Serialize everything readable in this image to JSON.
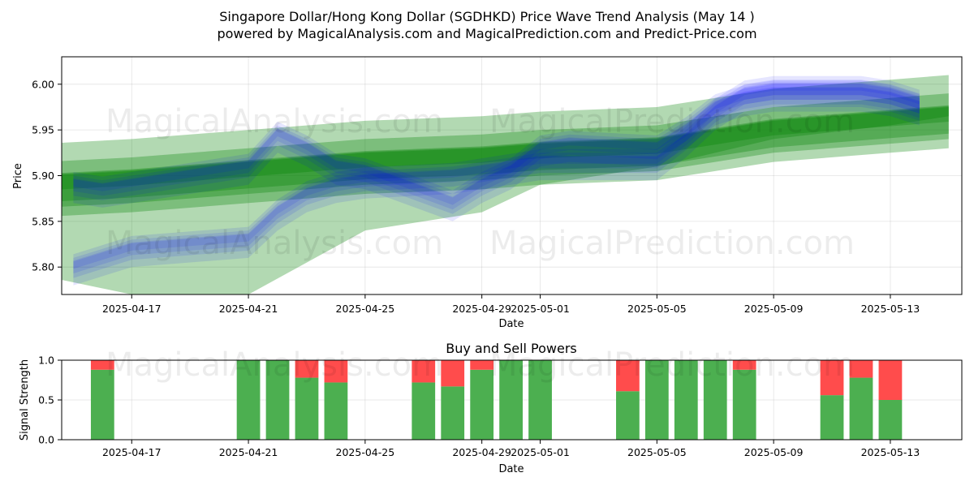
{
  "title_line1": "Singapore Dollar/Hong Kong Dollar (SGDHKD) Price Wave Trend Analysis (May 14 )",
  "title_line2": "powered by MagicalAnalysis.com and MagicalPrediction.com and Predict-Price.com",
  "watermarks": [
    "MagicalAnalysis.com",
    "MagicalPrediction.com"
  ],
  "colors": {
    "blue_wave": "#0000ff",
    "green_wave": "#008000",
    "buy": "#4caf50",
    "sell": "#ff4c4c",
    "grid": "#b0b0b0"
  },
  "chart_data": [
    {
      "type": "area",
      "title": "",
      "xlabel": "Date",
      "ylabel": "Price",
      "x_start": "2025-04-15",
      "x_end": "2025-05-15",
      "xlim": [
        "2025-04-14",
        "2025-05-15"
      ],
      "ylim": [
        5.77,
        6.03
      ],
      "x_ticks": [
        "2025-04-17",
        "2025-04-21",
        "2025-04-25",
        "2025-04-29",
        "2025-05-01",
        "2025-05-05",
        "2025-05-09",
        "2025-05-13"
      ],
      "y_ticks": [
        "5.80",
        "5.85",
        "5.90",
        "5.95",
        "6.00"
      ],
      "grid": true,
      "series": [
        {
          "color": "blue",
          "x": [
            "2025-04-15",
            "2025-04-16",
            "2025-04-17",
            "2025-04-21",
            "2025-04-22",
            "2025-04-23",
            "2025-04-24",
            "2025-04-25",
            "2025-04-28",
            "2025-04-29",
            "2025-04-30",
            "2025-05-01",
            "2025-05-02",
            "2025-05-05",
            "2025-05-06",
            "2025-05-07",
            "2025-05-08",
            "2025-05-09",
            "2025-05-12",
            "2025-05-13",
            "2025-05-14"
          ],
          "values": [
            5.8,
            5.81,
            5.82,
            5.83,
            5.86,
            5.88,
            5.89,
            5.895,
            5.9,
            5.905,
            5.91,
            5.915,
            5.915,
            5.915,
            5.94,
            5.97,
            5.99,
            5.995,
            5.995,
            5.99,
            5.98
          ]
        },
        {
          "color": "blue",
          "x": [
            "2025-04-15",
            "2025-04-16",
            "2025-04-17",
            "2025-04-21",
            "2025-04-22",
            "2025-04-23",
            "2025-04-24",
            "2025-04-25",
            "2025-04-28",
            "2025-04-29",
            "2025-04-30",
            "2025-05-01",
            "2025-05-02",
            "2025-05-05",
            "2025-05-06",
            "2025-05-07",
            "2025-05-08",
            "2025-05-09",
            "2025-05-12",
            "2025-05-13",
            "2025-05-14"
          ],
          "values": [
            5.89,
            5.885,
            5.89,
            5.91,
            5.945,
            5.93,
            5.91,
            5.905,
            5.87,
            5.89,
            5.905,
            5.93,
            5.935,
            5.93,
            5.95,
            5.975,
            5.985,
            5.99,
            5.99,
            5.985,
            5.975
          ]
        },
        {
          "color": "green",
          "x": [
            "2025-04-14",
            "2025-04-17",
            "2025-04-21",
            "2025-04-25",
            "2025-04-29",
            "2025-05-01",
            "2025-05-05",
            "2025-05-09",
            "2025-05-13",
            "2025-05-15"
          ],
          "values": [
            5.89,
            5.895,
            5.905,
            5.915,
            5.92,
            5.925,
            5.93,
            5.95,
            5.96,
            5.965
          ]
        },
        {
          "color": "green",
          "x": [
            "2025-04-14",
            "2025-04-17",
            "2025-04-21",
            "2025-04-25",
            "2025-04-29",
            "2025-05-01",
            "2025-05-05",
            "2025-05-09",
            "2025-05-13",
            "2025-05-15"
          ],
          "values": [
            5.79,
            5.77,
            5.77,
            5.84,
            5.86,
            5.89,
            5.91,
            5.94,
            5.955,
            5.965
          ]
        }
      ]
    },
    {
      "type": "bar",
      "title": "Buy and Sell Powers",
      "xlabel": "Date",
      "ylabel": "Signal Strength",
      "xlim": [
        "2025-04-14",
        "2025-05-15"
      ],
      "ylim": [
        0,
        1.0
      ],
      "x_ticks": [
        "2025-04-17",
        "2025-04-21",
        "2025-04-25",
        "2025-04-29",
        "2025-05-01",
        "2025-05-05",
        "2025-05-09",
        "2025-05-13"
      ],
      "y_ticks": [
        "0.0",
        "0.5",
        "1.0"
      ],
      "categories": [
        "2025-04-16",
        "2025-04-21",
        "2025-04-22",
        "2025-04-23",
        "2025-04-24",
        "2025-04-27",
        "2025-04-28",
        "2025-04-29",
        "2025-04-30",
        "2025-05-01",
        "2025-05-04",
        "2025-05-05",
        "2025-05-06",
        "2025-05-07",
        "2025-05-08",
        "2025-05-11",
        "2025-05-12",
        "2025-05-13"
      ],
      "series": [
        {
          "values": [
            0.88,
            1.0,
            1.0,
            0.78,
            0.72,
            0.72,
            0.67,
            0.88,
            1.0,
            1.0,
            0.61,
            1.0,
            1.0,
            1.0,
            0.88,
            0.56,
            0.78,
            0.5
          ]
        },
        {
          "values": [
            0.12,
            0.0,
            0.0,
            0.22,
            0.28,
            0.28,
            0.33,
            0.12,
            0.0,
            0.0,
            0.39,
            0.0,
            0.0,
            0.0,
            0.12,
            0.44,
            0.22,
            0.5
          ]
        }
      ]
    }
  ]
}
